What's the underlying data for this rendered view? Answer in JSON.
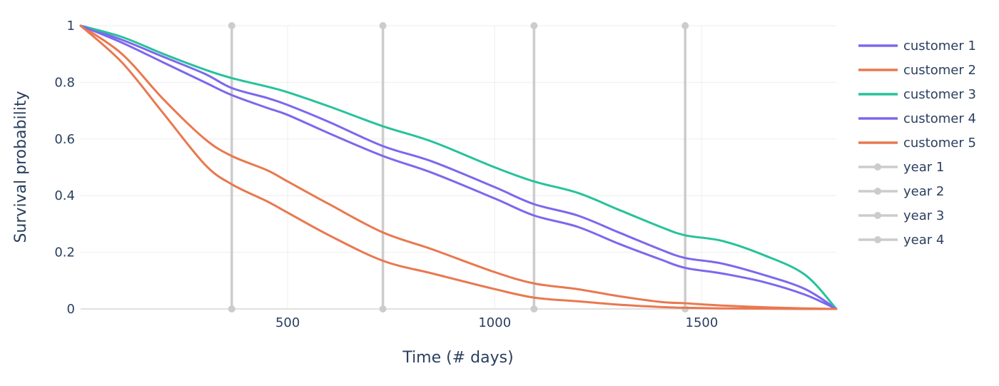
{
  "chart_data": {
    "type": "line",
    "xlabel": "Time (# days)",
    "ylabel": "Survival probability",
    "xlim": [
      0,
      1825
    ],
    "ylim": [
      0,
      1
    ],
    "x_ticks": [
      500,
      1000,
      1500
    ],
    "y_ticks": [
      0,
      0.2,
      0.4,
      0.6,
      0.8,
      1
    ],
    "y_tick_labels": [
      "0",
      "0.2",
      "0.4",
      "0.6",
      "0.8",
      "1"
    ],
    "grid": true,
    "legend_position": "right",
    "series": [
      {
        "name": "customer 1",
        "color": "#7b68ee",
        "x": [
          0,
          100,
          200,
          300,
          365,
          450,
          500,
          600,
          730,
          850,
          1000,
          1095,
          1200,
          1300,
          1400,
          1460,
          1550,
          1650,
          1750,
          1825
        ],
        "y": [
          1.0,
          0.95,
          0.89,
          0.83,
          0.78,
          0.745,
          0.72,
          0.66,
          0.575,
          0.52,
          0.43,
          0.37,
          0.33,
          0.27,
          0.21,
          0.18,
          0.16,
          0.12,
          0.07,
          0.0
        ]
      },
      {
        "name": "customer 2",
        "color": "#e9784f",
        "x": [
          0,
          100,
          200,
          300,
          365,
          450,
          500,
          600,
          730,
          850,
          1000,
          1095,
          1200,
          1300,
          1400,
          1460,
          1550,
          1650,
          1750,
          1825
        ],
        "y": [
          1.0,
          0.9,
          0.74,
          0.6,
          0.54,
          0.49,
          0.45,
          0.37,
          0.27,
          0.21,
          0.13,
          0.09,
          0.07,
          0.045,
          0.025,
          0.02,
          0.012,
          0.006,
          0.002,
          0.0
        ]
      },
      {
        "name": "customer 3",
        "color": "#27c29b",
        "x": [
          0,
          100,
          200,
          300,
          365,
          450,
          500,
          600,
          730,
          850,
          1000,
          1095,
          1200,
          1300,
          1400,
          1460,
          1550,
          1650,
          1750,
          1825
        ],
        "y": [
          1.0,
          0.96,
          0.9,
          0.845,
          0.815,
          0.785,
          0.765,
          0.715,
          0.645,
          0.59,
          0.5,
          0.45,
          0.41,
          0.35,
          0.29,
          0.26,
          0.24,
          0.19,
          0.12,
          0.0
        ]
      },
      {
        "name": "customer 4",
        "color": "#7b68ee",
        "x": [
          0,
          100,
          200,
          300,
          365,
          450,
          500,
          600,
          730,
          850,
          1000,
          1095,
          1200,
          1300,
          1400,
          1460,
          1550,
          1650,
          1750,
          1825
        ],
        "y": [
          1.0,
          0.94,
          0.87,
          0.8,
          0.755,
          0.71,
          0.685,
          0.62,
          0.54,
          0.48,
          0.39,
          0.33,
          0.29,
          0.23,
          0.175,
          0.145,
          0.125,
          0.095,
          0.05,
          0.0
        ]
      },
      {
        "name": "customer 5",
        "color": "#e9784f",
        "x": [
          0,
          100,
          200,
          300,
          365,
          450,
          500,
          600,
          730,
          850,
          1000,
          1095,
          1200,
          1300,
          1400,
          1460,
          1550,
          1650,
          1750,
          1825
        ],
        "y": [
          1.0,
          0.87,
          0.69,
          0.51,
          0.44,
          0.38,
          0.34,
          0.26,
          0.17,
          0.125,
          0.07,
          0.04,
          0.027,
          0.015,
          0.007,
          0.004,
          0.002,
          0.001,
          0.0,
          0.0
        ]
      },
      {
        "name": "year 1",
        "color": "#cccccc",
        "markers": true,
        "x": [
          365,
          365
        ],
        "y": [
          0,
          1
        ]
      },
      {
        "name": "year 2",
        "color": "#cccccc",
        "markers": true,
        "x": [
          730,
          730
        ],
        "y": [
          0,
          1
        ]
      },
      {
        "name": "year 3",
        "color": "#cccccc",
        "markers": true,
        "x": [
          1095,
          1095
        ],
        "y": [
          0,
          1
        ]
      },
      {
        "name": "year 4",
        "color": "#cccccc",
        "markers": true,
        "x": [
          1460,
          1460
        ],
        "y": [
          0,
          1
        ]
      }
    ]
  }
}
